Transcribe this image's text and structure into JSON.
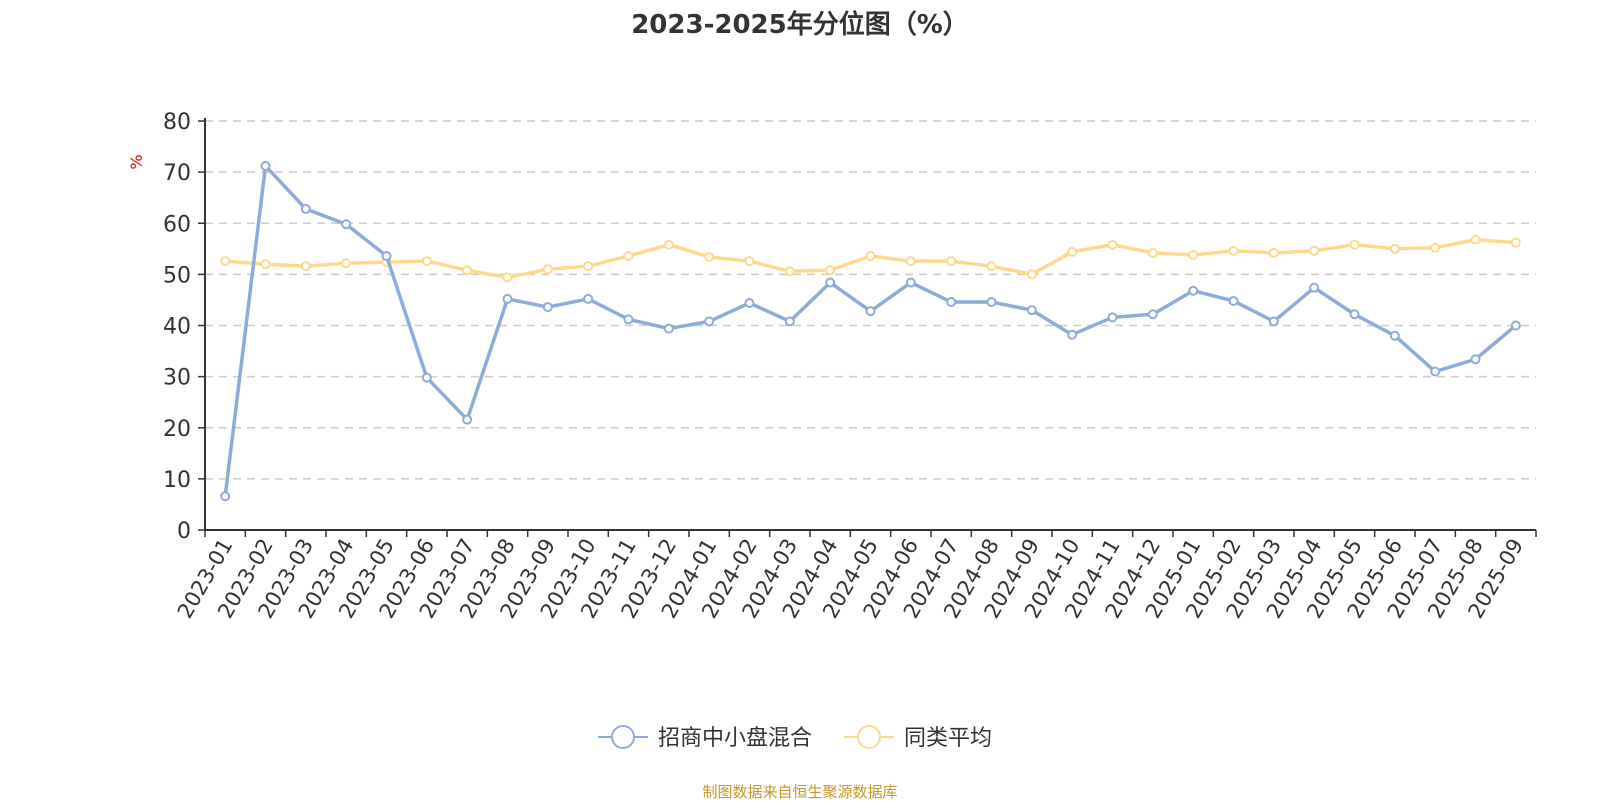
{
  "chart_data": {
    "type": "line",
    "title": "2023-2025年分位图（%）",
    "ylabel": "%",
    "xlabel": "",
    "ylim": [
      0,
      80
    ],
    "yticks": [
      0,
      10,
      20,
      30,
      40,
      50,
      60,
      70,
      80
    ],
    "grid": true,
    "legend_position": "bottom",
    "categories": [
      "2023-01",
      "2023-02",
      "2023-03",
      "2023-04",
      "2023-05",
      "2023-06",
      "2023-07",
      "2023-08",
      "2023-09",
      "2023-10",
      "2023-11",
      "2023-12",
      "2024-01",
      "2024-02",
      "2024-03",
      "2024-04",
      "2024-05",
      "2024-06",
      "2024-07",
      "2024-08",
      "2024-09",
      "2024-10",
      "2024-11",
      "2024-12",
      "2025-01",
      "2025-02",
      "2025-03",
      "2025-04",
      "2025-05",
      "2025-06",
      "2025-07",
      "2025-08",
      "2025-09"
    ],
    "series": [
      {
        "name": "招商中小盘混合",
        "color": "#8eacd9",
        "values": [
          6.6,
          71.2,
          62.8,
          59.8,
          53.6,
          29.8,
          21.6,
          45.2,
          43.6,
          45.2,
          41.2,
          39.4,
          40.8,
          44.4,
          40.8,
          48.4,
          42.8,
          48.4,
          44.6,
          44.6,
          43.0,
          38.2,
          41.6,
          42.2,
          46.8,
          44.8,
          40.8,
          47.4,
          42.2,
          38.0,
          31.0,
          33.4,
          40.0
        ]
      },
      {
        "name": "同类平均",
        "color": "#fdd98f",
        "values": [
          52.6,
          52.0,
          51.6,
          52.2,
          52.4,
          52.6,
          50.8,
          49.4,
          51.0,
          51.6,
          53.6,
          55.8,
          53.4,
          52.6,
          50.6,
          50.8,
          53.6,
          52.6,
          52.6,
          51.6,
          50.0,
          54.4,
          55.8,
          54.2,
          53.8,
          54.6,
          54.2,
          54.6,
          55.8,
          55.0,
          55.2,
          56.8,
          56.2
        ]
      }
    ]
  },
  "source": "制图数据来自恒生聚源数据库"
}
